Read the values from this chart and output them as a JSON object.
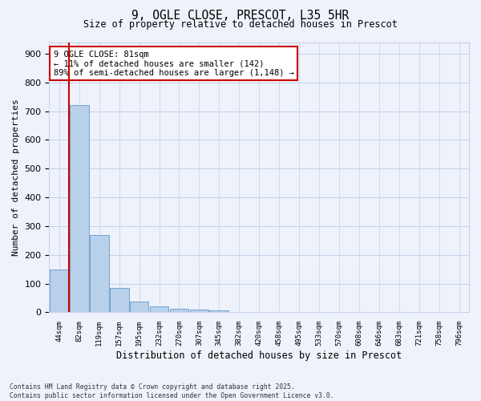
{
  "title_line1": "9, OGLE CLOSE, PRESCOT, L35 5HR",
  "title_line2": "Size of property relative to detached houses in Prescot",
  "xlabel": "Distribution of detached houses by size in Prescot",
  "ylabel": "Number of detached properties",
  "categories": [
    "44sqm",
    "82sqm",
    "119sqm",
    "157sqm",
    "195sqm",
    "232sqm",
    "270sqm",
    "307sqm",
    "345sqm",
    "382sqm",
    "420sqm",
    "458sqm",
    "495sqm",
    "533sqm",
    "570sqm",
    "608sqm",
    "646sqm",
    "683sqm",
    "721sqm",
    "758sqm",
    "796sqm"
  ],
  "values": [
    150,
    720,
    270,
    85,
    37,
    20,
    12,
    10,
    8,
    0,
    0,
    0,
    0,
    0,
    0,
    0,
    0,
    0,
    0,
    0,
    0
  ],
  "bar_color": "#b8d0ea",
  "bar_edge_color": "#6699cc",
  "vline_color": "#cc0000",
  "vline_x": 0.5,
  "annotation_text": "9 OGLE CLOSE: 81sqm\n← 11% of detached houses are smaller (142)\n89% of semi-detached houses are larger (1,148) →",
  "annotation_box_color": "#ffffff",
  "annotation_border_color": "#cc0000",
  "background_color": "#eef2fb",
  "grid_color": "#c5cfe8",
  "ylim": [
    0,
    940
  ],
  "yticks": [
    0,
    100,
    200,
    300,
    400,
    500,
    600,
    700,
    800,
    900
  ],
  "footnote": "Contains HM Land Registry data © Crown copyright and database right 2025.\nContains public sector information licensed under the Open Government Licence v3.0."
}
